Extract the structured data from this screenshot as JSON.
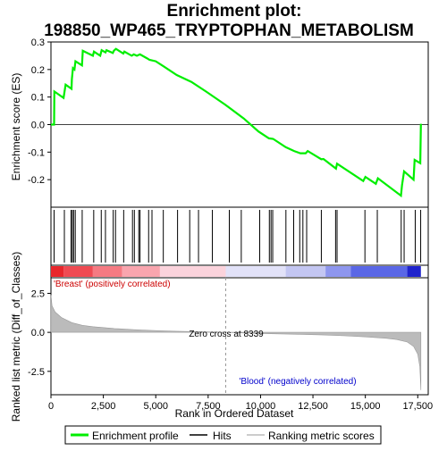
{
  "chart_data": {
    "type": "line",
    "title_line1": "Enrichment plot:",
    "title_line2": "198850_WP465_TRYPTOPHAN_METABOLISM",
    "x_label": "Rank in Ordered Dataset",
    "top_panel": {
      "ylabel": "Enrichment score (ES)",
      "ylim": [
        -0.3,
        0.3
      ],
      "yticks": [
        -0.2,
        -0.1,
        0.0,
        0.1,
        0.2,
        0.3
      ],
      "ytick_labels": [
        "-0.2",
        "-0.1",
        "0.0",
        "0.1",
        "0.2",
        "0.3"
      ],
      "series_name": "Enrichment profile",
      "color": "#00ee00",
      "es_profile": [
        [
          0,
          0.0
        ],
        [
          150,
          0.0
        ],
        [
          160,
          0.12
        ],
        [
          600,
          0.097
        ],
        [
          700,
          0.145
        ],
        [
          980,
          0.13
        ],
        [
          1000,
          0.165
        ],
        [
          1050,
          0.205
        ],
        [
          1120,
          0.2
        ],
        [
          1170,
          0.23
        ],
        [
          1480,
          0.215
        ],
        [
          1520,
          0.268
        ],
        [
          2000,
          0.25
        ],
        [
          2050,
          0.265
        ],
        [
          2350,
          0.25
        ],
        [
          2420,
          0.27
        ],
        [
          2600,
          0.262
        ],
        [
          2650,
          0.27
        ],
        [
          2950,
          0.26
        ],
        [
          3000,
          0.268
        ],
        [
          3100,
          0.275
        ],
        [
          3450,
          0.258
        ],
        [
          3500,
          0.265
        ],
        [
          3850,
          0.25
        ],
        [
          3950,
          0.255
        ],
        [
          4100,
          0.25
        ],
        [
          4250,
          0.255
        ],
        [
          4600,
          0.24
        ],
        [
          4700,
          0.235
        ],
        [
          5000,
          0.23
        ],
        [
          5400,
          0.21
        ],
        [
          6000,
          0.18
        ],
        [
          6700,
          0.155
        ],
        [
          7400,
          0.12
        ],
        [
          8300,
          0.073
        ],
        [
          9200,
          0.022
        ],
        [
          9900,
          -0.025
        ],
        [
          10400,
          -0.05
        ],
        [
          10600,
          -0.052
        ],
        [
          11200,
          -0.082
        ],
        [
          11600,
          -0.096
        ],
        [
          11900,
          -0.104
        ],
        [
          12150,
          -0.104
        ],
        [
          12250,
          -0.096
        ],
        [
          12900,
          -0.126
        ],
        [
          13000,
          -0.125
        ],
        [
          13600,
          -0.16
        ],
        [
          13650,
          -0.142
        ],
        [
          14900,
          -0.205
        ],
        [
          15000,
          -0.19
        ],
        [
          15500,
          -0.215
        ],
        [
          15600,
          -0.195
        ],
        [
          16700,
          -0.258
        ],
        [
          16750,
          -0.22
        ],
        [
          16850,
          -0.17
        ],
        [
          17300,
          -0.2
        ],
        [
          17350,
          -0.128
        ],
        [
          17620,
          -0.14
        ],
        [
          17650,
          0.003
        ]
      ]
    },
    "hits_panel": {
      "series_name": "Hits",
      "hit_ranks": [
        150,
        640,
        960,
        1020,
        1080,
        1160,
        1490,
        2040,
        2400,
        2600,
        2970,
        3080,
        3470,
        3890,
        3980,
        4190,
        4250,
        4660,
        4820,
        5360,
        6040,
        6620,
        7040,
        7700,
        8510,
        9080,
        9960,
        10420,
        10500,
        10580,
        11210,
        11580,
        11870,
        12020,
        12200,
        12900,
        13580,
        13650,
        14980,
        15570,
        16710,
        16850,
        17380,
        17640
      ]
    },
    "rank_panel": {
      "ylabel": "Ranked list metric (Diff_of_Classes)",
      "ylim": [
        -4.0,
        3.5
      ],
      "yticks": [
        -2.5,
        0.0,
        2.5
      ],
      "ytick_labels": [
        "-2.5",
        "0.0",
        "2.5"
      ],
      "series_name": "Ranking metric scores",
      "metric_curve": [
        [
          0,
          2.4
        ],
        [
          50,
          1.7
        ],
        [
          200,
          1.3
        ],
        [
          500,
          0.95
        ],
        [
          1000,
          0.62
        ],
        [
          1500,
          0.45
        ],
        [
          2000,
          0.36
        ],
        [
          3000,
          0.25
        ],
        [
          4000,
          0.17
        ],
        [
          5000,
          0.11
        ],
        [
          6000,
          0.07
        ],
        [
          7000,
          0.04
        ],
        [
          8339,
          0.0
        ],
        [
          9000,
          -0.03
        ],
        [
          10000,
          -0.07
        ],
        [
          11000,
          -0.1
        ],
        [
          12000,
          -0.13
        ],
        [
          13000,
          -0.17
        ],
        [
          14000,
          -0.22
        ],
        [
          15000,
          -0.29
        ],
        [
          16000,
          -0.38
        ],
        [
          16500,
          -0.46
        ],
        [
          17000,
          -0.62
        ],
        [
          17300,
          -0.9
        ],
        [
          17500,
          -1.4
        ],
        [
          17600,
          -2.2
        ],
        [
          17650,
          -3.7
        ]
      ],
      "zero_cross_rank": 8339,
      "zero_cross_text": "Zero cross at 8339",
      "positive_label": "'Breast' (positively correlated)",
      "negative_label": "'Blood' (negatively correlated)",
      "positive_color": "#cc0000",
      "negative_color": "#0000cc"
    },
    "x_axis": {
      "xlim": [
        0,
        18000
      ],
      "xticks": [
        0,
        2500,
        5000,
        7500,
        10000,
        12500,
        15000,
        17500
      ],
      "xtick_labels": [
        "0",
        "2,500",
        "5,000",
        "7,500",
        "10,000",
        "12,500",
        "15,000",
        "17,500"
      ],
      "n_genes": 17650
    },
    "legend": {
      "position": "bottom",
      "entries": [
        {
          "label": "Enrichment profile",
          "color": "#00ee00"
        },
        {
          "label": "Hits",
          "color": "#000000"
        },
        {
          "label": "Ranking metric scores",
          "color": "#bbbbbb"
        }
      ]
    }
  }
}
